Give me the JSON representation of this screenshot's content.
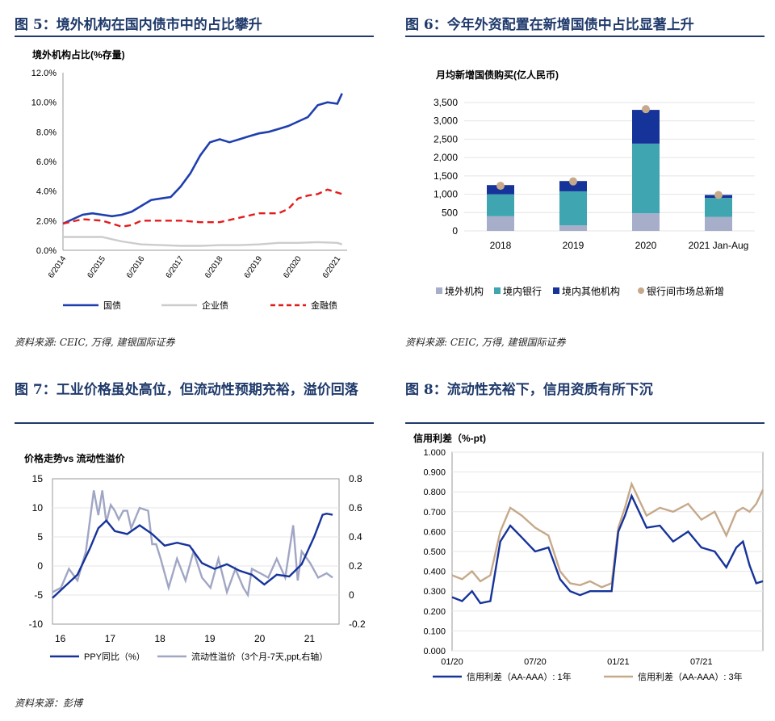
{
  "panels": [
    {
      "title": "图 5：境外机构在国内债市中的占比攀升",
      "source": "资料来源: CEIC, 万得, 建银国际证券"
    },
    {
      "title": "图 6：今年外资配置在新增国债中占比显著上升",
      "source": "资料来源: CEIC, 万得, 建银国际证券"
    },
    {
      "title": "图 7：工业价格虽处高位，但流动性预期充裕，溢价回落",
      "source": "资料来源：彭博"
    },
    {
      "title": "图 8：流动性充裕下，信用资质有所下沉",
      "source": ""
    }
  ],
  "chart_data": [
    {
      "type": "line",
      "title": "境外机构占比(%存量)",
      "ylim": [
        0,
        12
      ],
      "yticks": [
        "0.0%",
        "2.0%",
        "4.0%",
        "6.0%",
        "8.0%",
        "10.0%",
        "12.0%"
      ],
      "xticks": [
        "6/2014",
        "6/2015",
        "6/2016",
        "6/2017",
        "6/2018",
        "6/2019",
        "6/2020",
        "6/2021"
      ],
      "xlim": [
        2014.5,
        2021.75
      ],
      "series": [
        {
          "name": "国债",
          "color": "#1f3faf",
          "dash": "none",
          "x": [
            2014.5,
            2014.75,
            2015.0,
            2015.25,
            2015.5,
            2015.75,
            2016.0,
            2016.25,
            2016.5,
            2016.75,
            2017.0,
            2017.25,
            2017.5,
            2017.75,
            2018.0,
            2018.25,
            2018.5,
            2018.75,
            2019.0,
            2019.25,
            2019.5,
            2019.75,
            2020.0,
            2020.25,
            2020.5,
            2020.75,
            2021.0,
            2021.25,
            2021.5,
            2021.62
          ],
          "y": [
            1.8,
            2.1,
            2.4,
            2.5,
            2.4,
            2.3,
            2.4,
            2.6,
            3.0,
            3.4,
            3.5,
            3.6,
            4.3,
            5.2,
            6.4,
            7.3,
            7.5,
            7.3,
            7.5,
            7.7,
            7.9,
            8.0,
            8.2,
            8.4,
            8.7,
            9.0,
            9.8,
            10.0,
            9.9,
            10.6
          ]
        },
        {
          "name": "企业债",
          "color": "#cccccc",
          "dash": "none",
          "x": [
            2014.5,
            2015.0,
            2015.5,
            2016.0,
            2016.5,
            2017.0,
            2017.5,
            2018.0,
            2018.5,
            2019.0,
            2019.5,
            2020.0,
            2020.5,
            2021.0,
            2021.5,
            2021.62
          ],
          "y": [
            0.9,
            0.9,
            0.9,
            0.6,
            0.4,
            0.35,
            0.3,
            0.3,
            0.35,
            0.35,
            0.4,
            0.5,
            0.5,
            0.55,
            0.5,
            0.4
          ]
        },
        {
          "name": "金融债",
          "color": "#e31b1b",
          "dash": "8,5",
          "x": [
            2014.5,
            2015.0,
            2015.5,
            2016.0,
            2016.25,
            2016.5,
            2017.0,
            2017.5,
            2018.0,
            2018.5,
            2019.0,
            2019.5,
            2020.0,
            2020.25,
            2020.5,
            2020.75,
            2021.0,
            2021.25,
            2021.62
          ],
          "y": [
            1.8,
            2.1,
            2.0,
            1.6,
            1.7,
            2.0,
            2.0,
            2.0,
            1.9,
            1.9,
            2.2,
            2.5,
            2.5,
            2.8,
            3.5,
            3.7,
            3.8,
            4.1,
            3.8
          ]
        }
      ]
    },
    {
      "type": "bar",
      "title": "月均新增国债购买(亿人民币)",
      "categories": [
        "2018",
        "2019",
        "2020",
        "2021 Jan-Aug"
      ],
      "ylim": [
        0,
        3500
      ],
      "yticks": [
        "0",
        "500",
        "1,000",
        "1,500",
        "2,000",
        "2,500",
        "3,000",
        "3,500"
      ],
      "series": [
        {
          "name": "境外机构",
          "color": "#a7aec9",
          "values": [
            400,
            150,
            480,
            380
          ]
        },
        {
          "name": "境内银行",
          "color": "#3fa5b0",
          "values": [
            600,
            930,
            1900,
            520
          ]
        },
        {
          "name": "境内其他机构",
          "color": "#16339a",
          "values": [
            250,
            280,
            920,
            80
          ]
        }
      ],
      "markers": {
        "name": "银行间市场总新增",
        "color": "#c6a98a",
        "values": [
          1230,
          1350,
          3320,
          980
        ]
      }
    },
    {
      "type": "line",
      "title": "价格走势vs 流动性溢价",
      "xticks": [
        "16",
        "17",
        "18",
        "19",
        "20",
        "21"
      ],
      "xlim": [
        2016,
        2021.75
      ],
      "ylim": [
        -10,
        15
      ],
      "y2lim": [
        -0.2,
        0.8
      ],
      "yticks": [
        "-10",
        "-5",
        "0",
        "5",
        "10",
        "15"
      ],
      "y2ticks": [
        "-0.2",
        "0",
        "0.2",
        "0.4",
        "0.6",
        "0.8"
      ],
      "series": [
        {
          "name": "PPY同比（%）",
          "color": "#16339a",
          "axis": "left",
          "x": [
            2016.0,
            2016.25,
            2016.5,
            2016.75,
            2016.92,
            2017.08,
            2017.25,
            2017.5,
            2017.75,
            2018.0,
            2018.25,
            2018.5,
            2018.75,
            2019.0,
            2019.25,
            2019.5,
            2019.75,
            2020.0,
            2020.25,
            2020.5,
            2020.75,
            2021.0,
            2021.25,
            2021.42,
            2021.5,
            2021.62
          ],
          "y": [
            -5.5,
            -3.5,
            -1.5,
            3.0,
            6.5,
            7.8,
            6.0,
            5.5,
            7.0,
            5.5,
            3.5,
            4.0,
            3.5,
            0.5,
            -0.5,
            0.3,
            -0.8,
            -1.5,
            -3.2,
            -1.5,
            -1.8,
            0.3,
            5.0,
            8.8,
            9.0,
            8.8
          ]
        },
        {
          "name": "流动性溢价（3个月-7天,ppt,右轴）",
          "color": "#a0a6c4",
          "axis": "right",
          "x": [
            2016.0,
            2016.17,
            2016.33,
            2016.5,
            2016.67,
            2016.83,
            2016.92,
            2017.0,
            2017.08,
            2017.17,
            2017.25,
            2017.33,
            2017.42,
            2017.5,
            2017.58,
            2017.75,
            2017.92,
            2018.0,
            2018.08,
            2018.17,
            2018.33,
            2018.5,
            2018.67,
            2018.83,
            2019.0,
            2019.17,
            2019.33,
            2019.5,
            2019.67,
            2019.83,
            2019.92,
            2020.0,
            2020.17,
            2020.33,
            2020.5,
            2020.67,
            2020.83,
            2020.92,
            2021.0,
            2021.17,
            2021.33,
            2021.5,
            2021.62
          ],
          "y": [
            0.02,
            0.05,
            0.18,
            0.1,
            0.3,
            0.72,
            0.55,
            0.72,
            0.5,
            0.62,
            0.58,
            0.52,
            0.58,
            0.58,
            0.46,
            0.6,
            0.58,
            0.35,
            0.35,
            0.25,
            0.05,
            0.25,
            0.1,
            0.3,
            0.12,
            0.05,
            0.25,
            0.02,
            0.18,
            0.05,
            0.0,
            0.18,
            0.15,
            0.12,
            0.25,
            0.12,
            0.48,
            0.1,
            0.3,
            0.22,
            0.12,
            0.15,
            0.12
          ]
        }
      ]
    },
    {
      "type": "line",
      "title": "信用利差（%-pt)",
      "xticks": [
        "01/20",
        "07/20",
        "01/21",
        "07/21"
      ],
      "xlim": [
        2020.0,
        2021.87
      ],
      "ylim": [
        0,
        1
      ],
      "yticks": [
        "0.000",
        "0.100",
        "0.200",
        "0.300",
        "0.400",
        "0.500",
        "0.600",
        "0.700",
        "0.800",
        "0.900",
        "1.000"
      ],
      "series": [
        {
          "name": "信用利差（AA-AAA）: 1年",
          "color": "#16339a",
          "x": [
            2020.0,
            2020.06,
            2020.12,
            2020.17,
            2020.23,
            2020.29,
            2020.35,
            2020.42,
            2020.5,
            2020.58,
            2020.65,
            2020.71,
            2020.77,
            2020.83,
            2020.9,
            2020.96,
            2021.0,
            2021.04,
            2021.08,
            2021.17,
            2021.25,
            2021.33,
            2021.42,
            2021.5,
            2021.58,
            2021.65,
            2021.71,
            2021.75,
            2021.79,
            2021.83,
            2021.87
          ],
          "y": [
            0.27,
            0.25,
            0.3,
            0.24,
            0.25,
            0.55,
            0.63,
            0.57,
            0.5,
            0.52,
            0.36,
            0.3,
            0.28,
            0.3,
            0.3,
            0.3,
            0.6,
            0.68,
            0.78,
            0.62,
            0.63,
            0.55,
            0.6,
            0.52,
            0.5,
            0.42,
            0.52,
            0.55,
            0.43,
            0.34,
            0.35
          ]
        },
        {
          "name": "信用利差（AA-AAA）: 3年",
          "color": "#c6a98a",
          "x": [
            2020.0,
            2020.06,
            2020.12,
            2020.17,
            2020.23,
            2020.29,
            2020.35,
            2020.42,
            2020.5,
            2020.58,
            2020.65,
            2020.71,
            2020.77,
            2020.83,
            2020.9,
            2020.96,
            2021.0,
            2021.04,
            2021.08,
            2021.17,
            2021.25,
            2021.33,
            2021.42,
            2021.5,
            2021.58,
            2021.65,
            2021.71,
            2021.75,
            2021.79,
            2021.83,
            2021.87
          ],
          "y": [
            0.38,
            0.36,
            0.4,
            0.35,
            0.38,
            0.6,
            0.72,
            0.68,
            0.62,
            0.58,
            0.4,
            0.34,
            0.33,
            0.35,
            0.32,
            0.34,
            0.62,
            0.72,
            0.84,
            0.68,
            0.72,
            0.7,
            0.74,
            0.66,
            0.7,
            0.58,
            0.7,
            0.72,
            0.7,
            0.74,
            0.81
          ]
        }
      ]
    }
  ]
}
